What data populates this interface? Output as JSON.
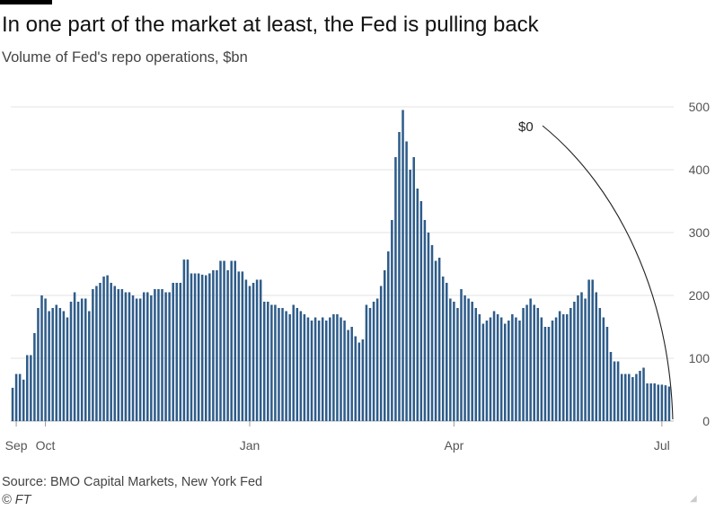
{
  "header": {
    "title": "In one part of the market at least, the Fed is pulling back",
    "subtitle": "Volume of Fed's repo operations, $bn"
  },
  "footer": {
    "source": "Source: BMO Capital Markets, New York Fed",
    "credit": "© FT"
  },
  "chart_data": {
    "type": "bar",
    "title": "In one part of the market at least, the Fed is pulling back",
    "subtitle": "Volume of Fed's repo operations, $bn",
    "xlabel": "",
    "ylabel": "",
    "ylim": [
      0,
      500
    ],
    "yticks": [
      0,
      100,
      200,
      300,
      400,
      500
    ],
    "grid": true,
    "bar_color": "#2e5c8a",
    "x_tick_labels": [
      {
        "label": "Sep",
        "index": 1
      },
      {
        "label": "Oct",
        "index": 9
      },
      {
        "label": "Jan",
        "index": 65
      },
      {
        "label": "Apr",
        "index": 121
      },
      {
        "label": "Jul",
        "index": 178
      }
    ],
    "annotation": {
      "label": "$0"
    },
    "values": [
      53,
      75,
      75,
      66,
      105,
      105,
      140,
      180,
      200,
      195,
      175,
      180,
      185,
      180,
      175,
      165,
      190,
      205,
      190,
      195,
      195,
      175,
      210,
      215,
      220,
      230,
      232,
      220,
      215,
      210,
      210,
      205,
      205,
      200,
      195,
      195,
      205,
      205,
      200,
      210,
      210,
      210,
      205,
      205,
      220,
      220,
      220,
      257,
      257,
      235,
      235,
      235,
      233,
      232,
      235,
      240,
      240,
      255,
      255,
      240,
      255,
      255,
      238,
      238,
      225,
      215,
      220,
      225,
      225,
      190,
      190,
      185,
      185,
      180,
      180,
      175,
      170,
      185,
      180,
      175,
      170,
      165,
      160,
      165,
      160,
      165,
      160,
      165,
      170,
      170,
      165,
      160,
      145,
      150,
      135,
      125,
      130,
      185,
      180,
      190,
      195,
      215,
      240,
      270,
      320,
      420,
      460,
      495,
      445,
      400,
      420,
      370,
      350,
      320,
      300,
      280,
      255,
      260,
      230,
      220,
      195,
      190,
      180,
      210,
      200,
      195,
      190,
      180,
      170,
      155,
      160,
      165,
      175,
      170,
      165,
      155,
      160,
      170,
      165,
      160,
      180,
      185,
      195,
      185,
      180,
      165,
      150,
      150,
      160,
      165,
      175,
      170,
      170,
      180,
      190,
      200,
      205,
      195,
      225,
      225,
      205,
      180,
      165,
      150,
      110,
      95,
      95,
      75,
      75,
      75,
      70,
      75,
      80,
      85,
      60,
      60,
      60,
      58,
      58,
      57,
      55
    ]
  }
}
